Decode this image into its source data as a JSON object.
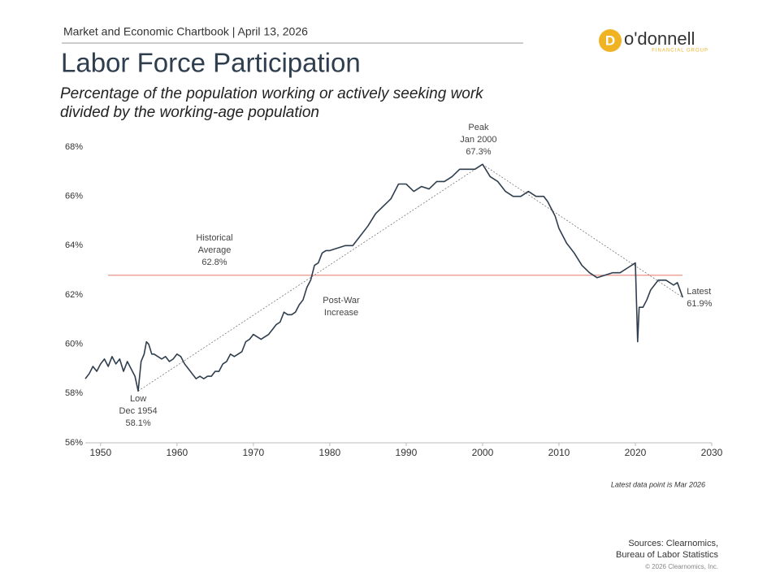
{
  "header": {
    "chartbook": "Market and Economic Chartbook | April 13, 2026",
    "logo_name": "o'donnell",
    "logo_sub": "FINANCIAL GROUP"
  },
  "chart_data": {
    "type": "line",
    "title": "Labor Force Participation",
    "subtitle": "Percentage of the population working or actively seeking work divided by the working-age population",
    "color": "#2f3e4e",
    "x": [
      1948.0,
      1948.5,
      1949.0,
      1949.5,
      1950.0,
      1950.5,
      1951.0,
      1951.5,
      1952.0,
      1952.5,
      1953.0,
      1953.5,
      1954.0,
      1954.5,
      1954.92,
      1955.3,
      1955.7,
      1956.0,
      1956.3,
      1956.7,
      1957.0,
      1957.5,
      1958.0,
      1958.5,
      1959.0,
      1959.5,
      1960.0,
      1960.5,
      1961.0,
      1961.5,
      1962.0,
      1962.5,
      1963.0,
      1963.5,
      1964.0,
      1964.5,
      1965.0,
      1965.5,
      1966.0,
      1966.5,
      1967.0,
      1967.5,
      1968.0,
      1968.5,
      1969.0,
      1969.5,
      1970.0,
      1970.5,
      1971.0,
      1971.5,
      1972.0,
      1972.5,
      1973.0,
      1973.5,
      1974.0,
      1974.5,
      1975.0,
      1975.5,
      1976.0,
      1976.5,
      1977.0,
      1977.5,
      1978.0,
      1978.5,
      1979.0,
      1979.5,
      1980.0,
      1981.0,
      1982.0,
      1983.0,
      1984.0,
      1985.0,
      1986.0,
      1987.0,
      1988.0,
      1989.0,
      1990.0,
      1991.0,
      1992.0,
      1993.0,
      1994.0,
      1995.0,
      1996.0,
      1997.0,
      1998.0,
      1999.0,
      2000.0,
      2001.0,
      2002.0,
      2003.0,
      2004.0,
      2005.0,
      2006.0,
      2007.0,
      2008.0,
      2008.5,
      2009.0,
      2009.5,
      2010.0,
      2011.0,
      2012.0,
      2013.0,
      2014.0,
      2015.0,
      2016.0,
      2017.0,
      2018.0,
      2019.0,
      2020.0,
      2020.3,
      2020.5,
      2021.0,
      2021.5,
      2022.0,
      2023.0,
      2024.0,
      2025.0,
      2025.5,
      2026.2
    ],
    "values": [
      58.6,
      58.8,
      59.1,
      58.9,
      59.2,
      59.4,
      59.1,
      59.5,
      59.2,
      59.4,
      58.9,
      59.3,
      59.0,
      58.7,
      58.1,
      59.3,
      59.6,
      60.1,
      60.0,
      59.6,
      59.6,
      59.5,
      59.4,
      59.5,
      59.3,
      59.4,
      59.6,
      59.5,
      59.2,
      59.0,
      58.8,
      58.6,
      58.7,
      58.6,
      58.7,
      58.7,
      58.9,
      58.9,
      59.2,
      59.3,
      59.6,
      59.5,
      59.6,
      59.7,
      60.1,
      60.2,
      60.4,
      60.3,
      60.2,
      60.3,
      60.4,
      60.6,
      60.8,
      60.9,
      61.3,
      61.2,
      61.2,
      61.3,
      61.6,
      61.8,
      62.3,
      62.6,
      63.2,
      63.3,
      63.7,
      63.8,
      63.8,
      63.9,
      64.0,
      64.0,
      64.4,
      64.8,
      65.3,
      65.6,
      65.9,
      66.5,
      66.5,
      66.2,
      66.4,
      66.3,
      66.6,
      66.6,
      66.8,
      67.1,
      67.1,
      67.1,
      67.3,
      66.8,
      66.6,
      66.2,
      66.0,
      66.0,
      66.2,
      66.0,
      66.0,
      65.8,
      65.5,
      65.2,
      64.7,
      64.1,
      63.7,
      63.2,
      62.9,
      62.7,
      62.8,
      62.9,
      62.9,
      63.1,
      63.3,
      60.1,
      61.5,
      61.5,
      61.8,
      62.2,
      62.6,
      62.6,
      62.4,
      62.5,
      61.9
    ],
    "xlim": [
      1948,
      2030
    ],
    "xticks": [
      1950,
      1960,
      1970,
      1980,
      1990,
      2000,
      2010,
      2020,
      2030
    ],
    "ylim": [
      56,
      68
    ],
    "yticks": [
      {
        "value": 56,
        "label": "56%"
      },
      {
        "value": 58,
        "label": "58%"
      },
      {
        "value": 60,
        "label": "60%"
      },
      {
        "value": 62,
        "label": "62%"
      },
      {
        "value": 64,
        "label": "64%"
      },
      {
        "value": 66,
        "label": "66%"
      },
      {
        "value": 68,
        "label": "68%"
      }
    ],
    "average": {
      "value": 62.8,
      "color": "#e8938a",
      "lines": [
        "Historical",
        "Average",
        "62.8%"
      ]
    },
    "points": [
      {
        "x": 1954.92,
        "value": 58.1,
        "lines": [
          "Low",
          "Dec 1954",
          "58.1%"
        ]
      },
      {
        "x": 2000.0,
        "value": 67.3,
        "lines": [
          "Peak",
          "Jan 2000",
          "67.3%"
        ]
      },
      {
        "x": 2026.2,
        "value": 61.9,
        "lines": [
          "Latest",
          "61.9%"
        ]
      }
    ],
    "trend_note": [
      "Post-War",
      "Increase"
    ],
    "note": "Latest data point is Mar 2026"
  },
  "footer": {
    "sources": [
      "Sources: Clearnomics,",
      "Bureau of Labor Statistics"
    ],
    "copyright": "© 2026 Clearnomics, Inc."
  }
}
